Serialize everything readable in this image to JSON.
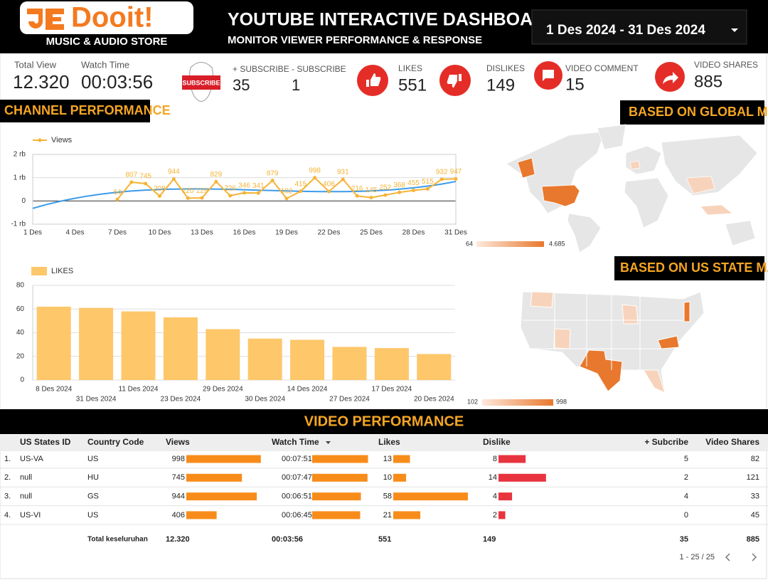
{
  "header": {
    "logo": "Dooit!",
    "logo_sub": "MUSIC & AUDIO STORE",
    "title": "YOUTUBE INTERACTIVE DASHBOARD",
    "subtitle": "MONITOR VIEWER PERFORMANCE & RESPONSE",
    "date_range": "1 Des 2024 - 31 Des 2024"
  },
  "kpis": [
    {
      "label": "Total View",
      "value": "12.320"
    },
    {
      "label": "Watch Time",
      "value": "00:03:56"
    },
    {
      "label": "+ SUBSCRIBE",
      "value": "35"
    },
    {
      "label": "- SUBSCRIBE",
      "value": "1"
    },
    {
      "label": "LIKES",
      "value": "551"
    },
    {
      "label": "DISLIKES",
      "value": "149"
    },
    {
      "label": "VIDEO COMMENT",
      "value": "15"
    },
    {
      "label": "VIDEO SHARES",
      "value": "885"
    }
  ],
  "subscribe_badge": "SUBSCRIBE",
  "sections": {
    "channel": "CHANNEL PERFORMANCE",
    "global": "BASED ON GLOBAL MAP",
    "us": "BASED ON US STATE MAP",
    "video": "VIDEO PERFORMANCE"
  },
  "chart_data": [
    {
      "type": "line",
      "categories": [
        "1 Des",
        null,
        null,
        "4 Des",
        null,
        null,
        "7 Des",
        null,
        null,
        "10 Des",
        null,
        null,
        "13 Des",
        null,
        null,
        "16 Des",
        null,
        null,
        "19 Des",
        null,
        null,
        "22 Des",
        null,
        null,
        "25 Des",
        null,
        null,
        "28 Des",
        null,
        null,
        "31 Des"
      ],
      "series": [
        {
          "name": "Views",
          "color": "#f5b335",
          "values": [
            null,
            null,
            null,
            null,
            null,
            null,
            64,
            807,
            745,
            208,
            944,
            120,
            129,
            829,
            226,
            346,
            341,
            879,
            102,
            415,
            998,
            406,
            931,
            216,
            145,
            252,
            368,
            455,
            515,
            932,
            947
          ]
        }
      ],
      "ylim": [
        -1000,
        2000
      ],
      "yticks": [
        {
          "value": -1000,
          "label": "-1 rb"
        },
        0,
        {
          "value": 1000,
          "label": "1 rb"
        },
        {
          "value": 2000,
          "label": "2 rb"
        }
      ],
      "grid": true,
      "legend": "top-left",
      "trendline": {
        "color": "#3d9be9"
      }
    },
    {
      "type": "bar",
      "categories": [
        "8 Des 2024",
        "31 Des 2024",
        "11 Des 2024",
        "23 Des 2024",
        "29 Des 2024",
        "30 Des 2024",
        "14 Des 2024",
        "27 Des 2024",
        "17 Des 2024",
        "20 Des 2024"
      ],
      "series": [
        {
          "name": "LIKES",
          "color": "#fdc76a",
          "values": [
            62,
            61,
            58,
            53,
            43,
            35,
            34,
            28,
            27,
            22
          ]
        }
      ],
      "ylim": [
        0,
        80
      ],
      "yticks": [
        0,
        20,
        40,
        60,
        80
      ],
      "grid": true,
      "legend": "top-left"
    }
  ],
  "maps": {
    "global_legend": [
      "64",
      "4.685"
    ],
    "us_legend": [
      "102",
      "998"
    ]
  },
  "table": {
    "columns": [
      "US States ID",
      "Country Code",
      "Views",
      "Watch Time",
      "Likes",
      "Dislike",
      "+ Subcribe",
      "Video Shares"
    ],
    "bars": {
      "2": {
        "color": "#f88c1a",
        "xlim": [
          0,
          1000
        ]
      },
      "3": {
        "color": "#f88c1a",
        "xlim": [
          0,
          630
        ]
      },
      "4": {
        "color": "#f88c1a",
        "xlim": [
          0,
          58
        ]
      },
      "5": {
        "color": "#e8343f",
        "xlim": [
          0,
          22
        ]
      }
    },
    "rows": [
      {
        "index": "1.",
        "cells": [
          "US-VA",
          "US",
          998,
          "00:07:51",
          13,
          8,
          5,
          82
        ]
      },
      {
        "index": "2.",
        "cells": [
          "null",
          "HU",
          745,
          "00:07:47",
          10,
          14,
          2,
          121
        ]
      },
      {
        "index": "3.",
        "cells": [
          "null",
          "GS",
          944,
          "00:06:51",
          58,
          4,
          4,
          33
        ]
      },
      {
        "index": "4.",
        "cells": [
          "US-VI",
          "US",
          406,
          "00:06:45",
          21,
          2,
          0,
          45
        ]
      }
    ],
    "total": {
      "label": "Total keseluruhan",
      "values": [
        "12.320",
        "00:03:56",
        "551",
        "149",
        "35",
        "885"
      ]
    },
    "pagination": "1 - 25 / 25"
  }
}
